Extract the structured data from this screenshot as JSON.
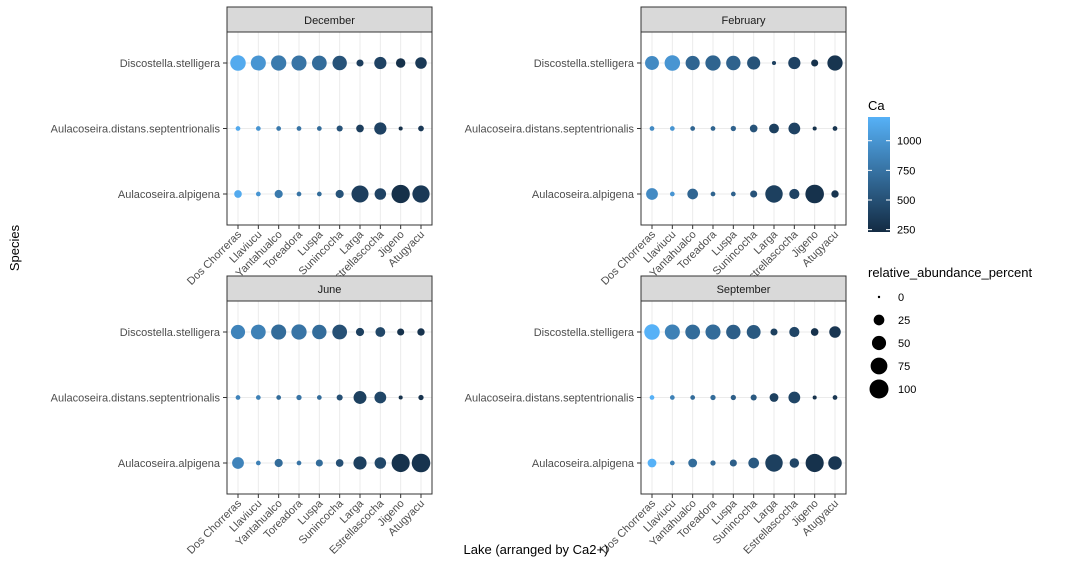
{
  "chart_data": {
    "type": "scatter",
    "xlabel": "Lake (arranged by Ca2+)",
    "ylabel": "Species",
    "lakes": [
      "Dos Chorreras",
      "Llaviucu",
      "Yantahualco",
      "Toreadora",
      "Luspa",
      "Sunincocha",
      "Larga",
      "Estrellascocha",
      "Jigeno",
      "Atugyacu"
    ],
    "species": [
      "Discostella.stelligera",
      "Aulacoseira.distans.septentrionalis",
      "Aulacoseira.alpigena"
    ],
    "legend_color": {
      "title": "Ca",
      "ticks": [
        250,
        500,
        750,
        1000
      ],
      "range": [
        230,
        1200
      ],
      "low_color": "#132B43",
      "high_color": "#56B1F7"
    },
    "legend_size": {
      "title": "relative_abundance_percent",
      "values": [
        0,
        25,
        50,
        75,
        100
      ]
    },
    "panels": [
      {
        "title": "December",
        "ca": [
          1150,
          1000,
          800,
          760,
          700,
          520,
          370,
          400,
          270,
          330
        ],
        "abundance": [
          [
            62,
            58,
            60,
            58,
            55,
            52,
            8,
            35,
            18,
            30
          ],
          [
            2,
            2,
            2,
            2,
            2,
            5,
            10,
            35,
            1,
            4
          ],
          [
            10,
            2,
            12,
            2,
            2,
            12,
            78,
            30,
            92,
            80
          ]
        ]
      },
      {
        "title": "February",
        "ca": [
          920,
          1000,
          650,
          640,
          630,
          520,
          380,
          400,
          280,
          300
        ],
        "abundance": [
          [
            48,
            62,
            50,
            60,
            52,
            42,
            1,
            35,
            8,
            60
          ],
          [
            2,
            2,
            2,
            2,
            3,
            10,
            20,
            32,
            1,
            2
          ],
          [
            32,
            2,
            25,
            2,
            2,
            8,
            82,
            22,
            95,
            9
          ]
        ]
      },
      {
        "title": "June",
        "ca": [
          870,
          850,
          700,
          760,
          700,
          500,
          380,
          430,
          280,
          290
        ],
        "abundance": [
          [
            50,
            55,
            58,
            60,
            52,
            55,
            12,
            20,
            8,
            9
          ],
          [
            2,
            2,
            2,
            3,
            2,
            5,
            40,
            32,
            1,
            3
          ],
          [
            32,
            2,
            12,
            2,
            8,
            10,
            42,
            30,
            90,
            95
          ]
        ]
      },
      {
        "title": "September",
        "ca": [
          1200,
          850,
          700,
          700,
          600,
          560,
          380,
          420,
          280,
          310
        ],
        "abundance": [
          [
            62,
            58,
            55,
            58,
            52,
            48,
            8,
            22,
            10,
            30
          ],
          [
            2,
            2,
            2,
            3,
            3,
            5,
            15,
            32,
            1,
            2
          ],
          [
            15,
            2,
            15,
            3,
            8,
            25,
            82,
            18,
            90,
            45
          ]
        ]
      }
    ]
  }
}
